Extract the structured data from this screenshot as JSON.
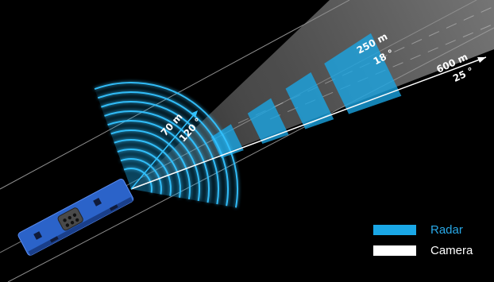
{
  "diagram": {
    "camera_long": {
      "distance": "600 m",
      "angle": "25 °"
    },
    "radar_long": {
      "distance": "250 m",
      "angle": "18 °"
    },
    "radar_short": {
      "distance": "70 m",
      "angle": "120 °"
    }
  },
  "legend": [
    {
      "label": "Radar",
      "color": "#1aa7e6",
      "text_color": "#29a9e8"
    },
    {
      "label": "Camera",
      "color": "#ffffff",
      "text_color": "#ffffff"
    }
  ],
  "colors": {
    "background": "#000000",
    "radar": "#1aa7e6",
    "camera": "#ffffff",
    "vehicle": "#2b63c9"
  }
}
